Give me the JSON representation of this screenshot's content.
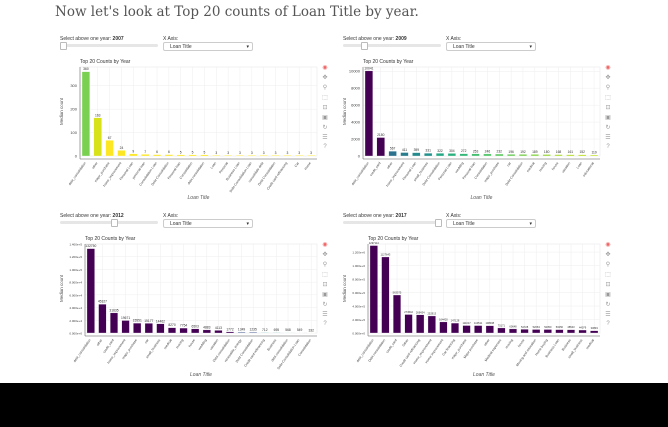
{
  "heading": "Now let's look at Top 20 counts of Loan Title by year.",
  "controls": {
    "slider_label_prefix": "Select above one year:",
    "xaxis_label": "X Axis:",
    "select_value": "Loan Title"
  },
  "toolbar_icons": [
    "bokeh-logo-icon",
    "pan-icon",
    "wheel-zoom-icon",
    "box-zoom-icon",
    "box-select-icon",
    "save-icon",
    "reset-icon",
    "tap-icon",
    "help-icon"
  ],
  "chart_data": [
    {
      "type": "bar",
      "year": "2007",
      "slider_fraction": 0.0,
      "title": "Top 20 Counts by Year",
      "xlabel": "Loan Title",
      "ylabel": "Median count",
      "ylim": [
        0,
        380
      ],
      "yticks": [
        "0",
        "100",
        "200",
        "300"
      ],
      "ytickvals": [
        0,
        100,
        200,
        300
      ],
      "categories": [
        "debt_consolidation",
        "other",
        "major_purchase",
        "home_improvement",
        "Personal Loan",
        "personal loan",
        "Consolidation Loan",
        "Debt Consolidation",
        "Personal loan",
        "Consolidation",
        "debt consolidation",
        "Loan",
        "Personal",
        "Business Loan",
        "Debt Consolidation Loan",
        "consolidate debt",
        "Debt Consolidation",
        "Credit card refinancing",
        "Car",
        "Home"
      ],
      "values": [
        360,
        163,
        67,
        24,
        9,
        7,
        6,
        6,
        5,
        5,
        5,
        3,
        3,
        3,
        3,
        3,
        3,
        3,
        3,
        3
      ],
      "labels": [
        "360",
        "163",
        "67",
        "24",
        "9",
        "7",
        "6",
        "6",
        "5",
        "5",
        "5",
        "3",
        "3",
        "3",
        "3",
        "3",
        "3",
        "3",
        "3",
        "3"
      ],
      "colors": [
        "#7ad151",
        "#d8e219",
        "#fde725",
        "#fde725",
        "#fde725",
        "#fde725",
        "#fde725",
        "#fde725",
        "#fde725",
        "#fde725",
        "#fde725",
        "#fde725",
        "#fde725",
        "#fde725",
        "#fde725",
        "#fde725",
        "#fde725",
        "#fde725",
        "#fde725",
        "#fde725"
      ]
    },
    {
      "type": "bar",
      "year": "2009",
      "slider_fraction": 0.2,
      "title": "Top 20 Counts by Year",
      "xlabel": "Loan Title",
      "ylabel": "Median count",
      "ylim": [
        0,
        10500
      ],
      "yticks": [
        "0",
        "2000",
        "4000",
        "6000",
        "8000",
        "10000"
      ],
      "ytickvals": [
        0,
        2000,
        4000,
        6000,
        8000,
        10000
      ],
      "categories": [
        "debt_consolidation",
        "credit_card",
        "other",
        "home_improvement",
        "Personal Loan",
        "small_business",
        "Debt Consolidation",
        "Personal Loan",
        "wedding",
        "Personal loan",
        "Consolidation",
        "major_purchase",
        "car",
        "Debt Consolidation",
        "medical",
        "moving",
        "house",
        "vacation",
        "Loan",
        "educational"
      ],
      "values": [
        10041,
        2180,
        567,
        411,
        399,
        331,
        322,
        304,
        272,
        253,
        246,
        232,
        196,
        192,
        189,
        180,
        168,
        161,
        152,
        119
      ],
      "labels": [
        "10041",
        "2180",
        "567",
        "411",
        "399",
        "331",
        "322",
        "304",
        "272",
        "253",
        "246",
        "232",
        "196",
        "192",
        "189",
        "180",
        "168",
        "161",
        "152",
        "119"
      ],
      "colors": [
        "#440154",
        "#440154",
        "#2c728e",
        "#287c8e",
        "#238a8d",
        "#21918c",
        "#22a884",
        "#2ab07f",
        "#35b779",
        "#44bf70",
        "#52c569",
        "#5ec962",
        "#6ccd5a",
        "#7ad151",
        "#89d548",
        "#9bd93c",
        "#addc30",
        "#b8de29",
        "#bddf26",
        "#c2df23"
      ]
    },
    {
      "type": "bar",
      "year": "2012",
      "slider_fraction": 0.55,
      "title": "Top 20 Counts by Year",
      "xlabel": "Loan Title",
      "ylabel": "Median count",
      "ylim": [
        0,
        140000
      ],
      "yticks": [
        "0.000e+0",
        "2.000e+4",
        "4.000e+4",
        "6.000e+4",
        "8.000e+4",
        "1.000e+5",
        "1.200e+5",
        "1.400e+5"
      ],
      "ytickvals": [
        0,
        20000,
        40000,
        60000,
        80000,
        100000,
        120000,
        140000
      ],
      "categories": [
        "debt_consolidation",
        "other",
        "credit_card",
        "home_improvement",
        "major_purchase",
        "car",
        "small_business",
        "medical",
        "moving",
        "house",
        "wedding",
        "vacation",
        "Debt consolidation",
        "renewable_energy",
        "Debt Consolidation",
        "Credit card refinancing",
        "Business",
        "debt consolidation",
        "Debt Consolidation Loan",
        "Consolidation"
      ],
      "values": [
        132750,
        45327,
        31635,
        19671,
        15551,
        15177,
        14462,
        8270,
        7754,
        6503,
        4883,
        4113,
        1772,
        1349,
        1235,
        712,
        695,
        568,
        549,
        332
      ],
      "labels": [
        "132750",
        "45327",
        "31635",
        "19671",
        "15551",
        "15177",
        "14462",
        "8270",
        "7754",
        "6503",
        "4883",
        "4113",
        "1772",
        "1349",
        "1235",
        "712",
        "695",
        "568",
        "549",
        "332"
      ],
      "colors": [
        "#440154",
        "#440154",
        "#440154",
        "#440154",
        "#440154",
        "#440154",
        "#440154",
        "#440154",
        "#440154",
        "#440154",
        "#440154",
        "#440154",
        "#440154",
        "#3b528b",
        "#3b528b",
        "#21918c",
        "#21918c",
        "#21918c",
        "#5ec962",
        "#fde725"
      ]
    },
    {
      "type": "bar",
      "year": "2017",
      "slider_fraction": 1.0,
      "title": "Top 20 Counts by Year",
      "xlabel": "Loan Title",
      "ylabel": "Median count",
      "ylim": [
        0,
        1320000
      ],
      "yticks": [
        "0.000e+0",
        "2.000e+5",
        "4.000e+5",
        "6.000e+5",
        "8.000e+5",
        "1.000e+6",
        "1.200e+6"
      ],
      "ytickvals": [
        0,
        200000,
        400000,
        600000,
        800000,
        1000000,
        1200000
      ],
      "categories": [
        "debt_consolidation",
        "Debt consolidation",
        "credit_card",
        "Other",
        "Credit card refinancing",
        "Home_improvement",
        "Home improvement",
        "Car financing",
        "major_purchase",
        "Major purchase",
        "other",
        "Medical expenses",
        "moving",
        "house",
        "Moving and relocation",
        "Home buying",
        "Business Loan",
        "Business",
        "small_business",
        "medical"
      ],
      "values": [
        1297114,
        1127643,
        563575,
        274542,
        269434,
        252913,
        164420,
        147128,
        111017,
        110511,
        108008,
        75171,
        60648,
        54728,
        52063,
        52050,
        50250,
        48543,
        44079,
        33849
      ],
      "labels": [
        "1297114",
        "1127643",
        "563575",
        "274542",
        "269434",
        "252913",
        "164420",
        "147128",
        "111017",
        "110511",
        "108008",
        "75171",
        "60648",
        "54728",
        "52063",
        "52050",
        "50250",
        "48543",
        "44079",
        "33849"
      ],
      "colors": [
        "#440154",
        "#440154",
        "#440154",
        "#440154",
        "#440154",
        "#440154",
        "#440154",
        "#440154",
        "#440154",
        "#440154",
        "#440154",
        "#440154",
        "#440154",
        "#440154",
        "#440154",
        "#440154",
        "#440154",
        "#440154",
        "#440154",
        "#440154"
      ]
    }
  ]
}
